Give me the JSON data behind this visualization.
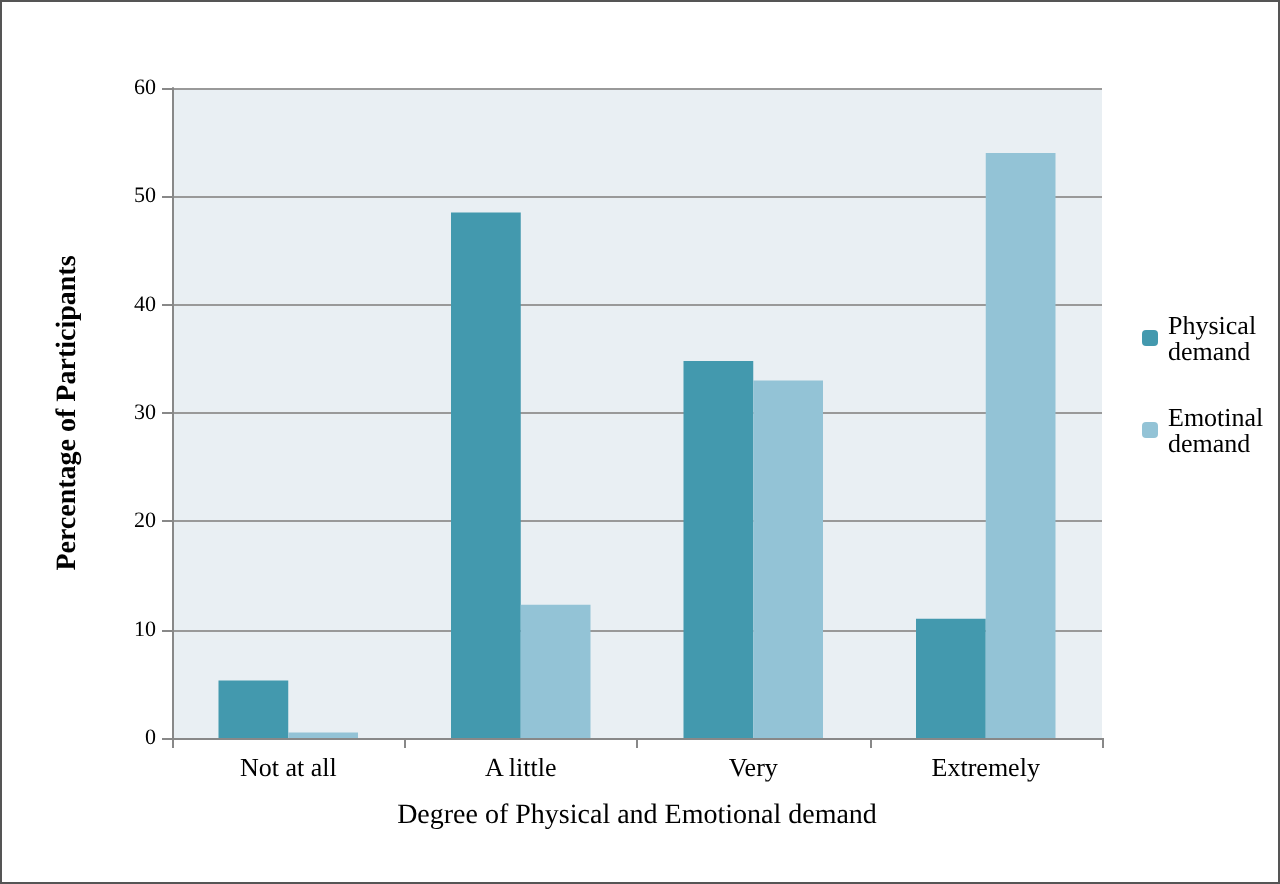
{
  "chart_data": {
    "type": "bar",
    "xlabel": "Degree of Physical and Emotional demand",
    "ylabel": "Percentage of Participants",
    "categories": [
      "Not at all",
      "A little",
      "Very",
      "Extremely"
    ],
    "series": [
      {
        "name": "Physical demand",
        "color": "#4399ae",
        "values": [
          5.3,
          48.5,
          34.8,
          11.0
        ]
      },
      {
        "name": "Emotinal demand",
        "color": "#93c3d6",
        "values": [
          0.5,
          12.3,
          33.0,
          54.0
        ]
      }
    ],
    "ylim": [
      0,
      60
    ],
    "yticks": [
      0,
      10,
      20,
      30,
      40,
      50,
      60
    ],
    "grid": "y",
    "legend": "right"
  }
}
